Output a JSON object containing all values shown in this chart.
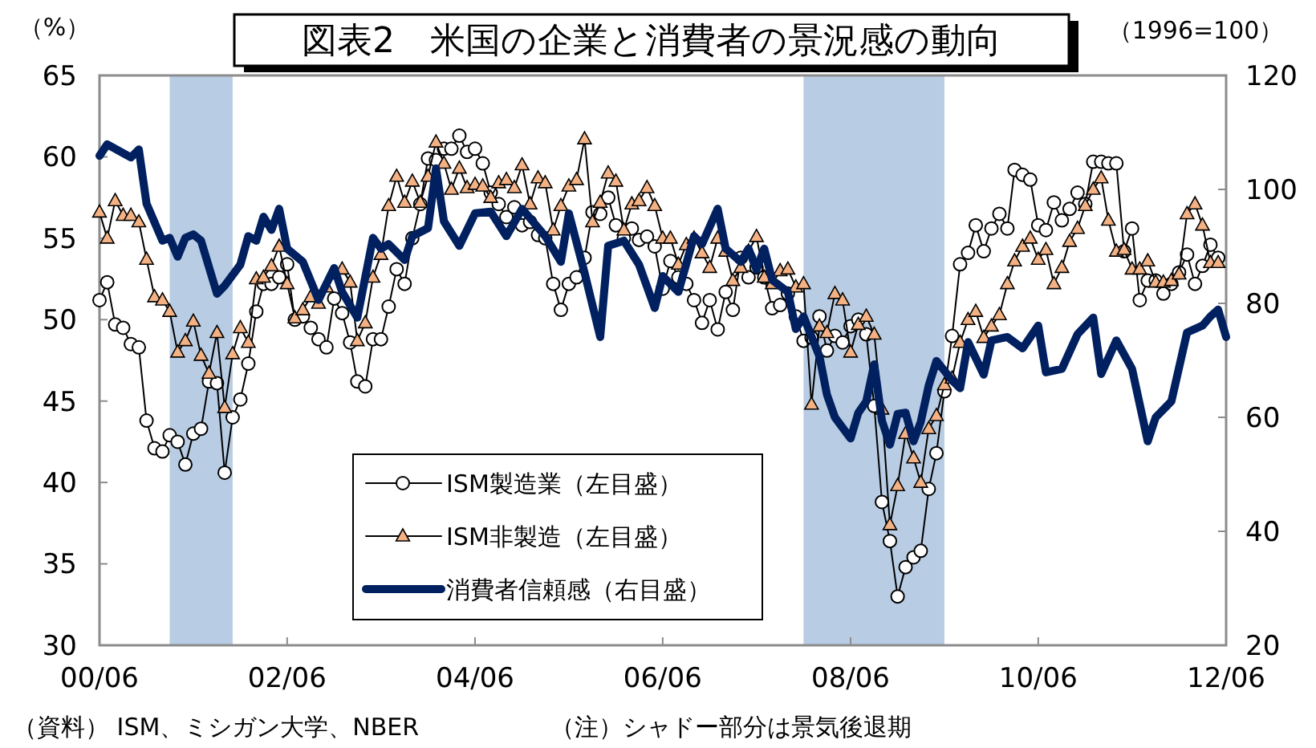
{
  "chart_data": {
    "type": "line",
    "title": "図表2　米国の企業と消費者の景況感の動向",
    "ylabel": "（%）",
    "y2label": "（1996=100）",
    "annotations": [
      "（資料） ISM、ミシガン大学、NBER",
      "（注）シャドー部分は景気後退期"
    ],
    "x": [
      "2000-06",
      "2000-07",
      "2000-08",
      "2000-09",
      "2000-10",
      "2000-11",
      "2000-12",
      "2001-01",
      "2001-02",
      "2001-03",
      "2001-04",
      "2001-05",
      "2001-06",
      "2001-07",
      "2001-08",
      "2001-09",
      "2001-10",
      "2001-11",
      "2001-12",
      "2002-01",
      "2002-02",
      "2002-03",
      "2002-04",
      "2002-05",
      "2002-06",
      "2002-07",
      "2002-08",
      "2002-09",
      "2002-10",
      "2002-11",
      "2002-12",
      "2003-01",
      "2003-02",
      "2003-03",
      "2003-04",
      "2003-05",
      "2003-06",
      "2003-07",
      "2003-08",
      "2003-09",
      "2003-10",
      "2003-11",
      "2003-12",
      "2004-01",
      "2004-02",
      "2004-03",
      "2004-04",
      "2004-05",
      "2004-06",
      "2004-07",
      "2004-08",
      "2004-09",
      "2004-10",
      "2004-11",
      "2004-12",
      "2005-01",
      "2005-02",
      "2005-03",
      "2005-04",
      "2005-05",
      "2005-06",
      "2005-07",
      "2005-08",
      "2005-09",
      "2005-10",
      "2005-11",
      "2005-12",
      "2006-01",
      "2006-02",
      "2006-03",
      "2006-04",
      "2006-05",
      "2006-06",
      "2006-07",
      "2006-08",
      "2006-09",
      "2006-10",
      "2006-11",
      "2006-12",
      "2007-01",
      "2007-02",
      "2007-03",
      "2007-04",
      "2007-05",
      "2007-06",
      "2007-07",
      "2007-08",
      "2007-09",
      "2007-10",
      "2007-11",
      "2007-12",
      "2008-01",
      "2008-02",
      "2008-03",
      "2008-04",
      "2008-05",
      "2008-06",
      "2008-07",
      "2008-08",
      "2008-09",
      "2008-10",
      "2008-11",
      "2008-12",
      "2009-01",
      "2009-02",
      "2009-03",
      "2009-04",
      "2009-05",
      "2009-06",
      "2009-07",
      "2009-08",
      "2009-09",
      "2009-10",
      "2009-11",
      "2009-12",
      "2010-01",
      "2010-02",
      "2010-03",
      "2010-04",
      "2010-05",
      "2010-06",
      "2010-07",
      "2010-08",
      "2010-09",
      "2010-10",
      "2010-11",
      "2010-12",
      "2011-01",
      "2011-02",
      "2011-03",
      "2011-04",
      "2011-05",
      "2011-06",
      "2011-07",
      "2011-08",
      "2011-09",
      "2011-10",
      "2011-11",
      "2011-12",
      "2012-01",
      "2012-02",
      "2012-03",
      "2012-04",
      "2012-05"
    ],
    "xlim": [
      "2000-06",
      "2012-06"
    ],
    "xticks": [
      {
        "value": "2000-06",
        "label": "00/06"
      },
      {
        "value": "2002-06",
        "label": "02/06"
      },
      {
        "value": "2004-06",
        "label": "04/06"
      },
      {
        "value": "2006-06",
        "label": "06/06"
      },
      {
        "value": "2008-06",
        "label": "08/06"
      },
      {
        "value": "2010-06",
        "label": "10/06"
      },
      {
        "value": "2012-06",
        "label": "12/06"
      }
    ],
    "ylim": [
      30,
      65
    ],
    "yticks": [
      30,
      35,
      40,
      45,
      50,
      55,
      60,
      65
    ],
    "y2lim": [
      20,
      120
    ],
    "y2ticks": [
      20,
      40,
      60,
      80,
      100,
      120
    ],
    "legend": "bottom",
    "grid": false,
    "bands": [
      {
        "axis": "x",
        "from": "2001-03",
        "to": "2001-11",
        "color": "#b8cce4"
      },
      {
        "axis": "x",
        "from": "2007-12",
        "to": "2009-06",
        "color": "#b8cce4"
      }
    ],
    "series": [
      {
        "name": "ISM製造業（左目盛）",
        "color": "#000000",
        "marker": "circle",
        "values": [
          51.2,
          52.3,
          49.7,
          49.5,
          48.5,
          48.3,
          43.8,
          42.1,
          41.9,
          42.9,
          42.5,
          41.1,
          43.0,
          43.3,
          46.2,
          46.1,
          40.6,
          44.0,
          45.1,
          47.3,
          50.5,
          52.2,
          52.2,
          52.6,
          53.4,
          50.0,
          50.2,
          49.5,
          48.8,
          48.3,
          51.3,
          50.4,
          48.6,
          46.2,
          45.9,
          48.8,
          48.8,
          50.8,
          53.1,
          52.2,
          55.0,
          57.1,
          59.9,
          59.8,
          60.5,
          60.5,
          61.3,
          60.3,
          60.5,
          59.6,
          57.8,
          57.1,
          56.3,
          56.9,
          55.8,
          56.0,
          55.2,
          55.0,
          52.2,
          50.6,
          52.2,
          52.6,
          53.8,
          56.6,
          56.5,
          57.5,
          55.8,
          55.0,
          55.6,
          54.9,
          55.1,
          54.5,
          51.9,
          53.6,
          52.6,
          52.2,
          51.2,
          49.8,
          51.2,
          49.4,
          51.7,
          50.6,
          53.8,
          52.6,
          53.2,
          52.6,
          50.7,
          50.9,
          51.6,
          50.2,
          48.7,
          48.9,
          50.2,
          48.1,
          49.0,
          48.6,
          49.6,
          50.0,
          49.1,
          44.7,
          38.8,
          36.4,
          33.0,
          34.8,
          35.4,
          35.8,
          39.6,
          41.8,
          45.6,
          49.0,
          53.4,
          54.1,
          55.8,
          54.2,
          55.6,
          56.5,
          55.6,
          59.2,
          58.9,
          58.6,
          55.8,
          55.5,
          57.2,
          56.1,
          56.8,
          57.8,
          57.1,
          59.7,
          59.7,
          59.6,
          59.6,
          54.2,
          55.6,
          51.2,
          52.4,
          52.4,
          51.6,
          52.2,
          52.9,
          54.0,
          52.2,
          53.3,
          54.6,
          53.8
        ]
      },
      {
        "name": "ISM非製造（左目盛）",
        "color": "#f4b183",
        "marker": "triangle",
        "values": [
          56.6,
          55.0,
          57.3,
          56.4,
          56.4,
          56.0,
          53.7,
          51.4,
          51.2,
          50.5,
          48.0,
          48.7,
          49.9,
          47.8,
          46.7,
          49.2,
          44.6,
          47.9,
          49.5,
          48.6,
          52.5,
          52.6,
          53.3,
          54.5,
          52.2,
          50.1,
          50.6,
          51.4,
          51.0,
          52.0,
          52.8,
          53.1,
          52.3,
          48.7,
          49.8,
          52.6,
          54.0,
          57.0,
          58.8,
          57.2,
          58.5,
          57.2,
          58.8,
          60.9,
          59.6,
          58.0,
          59.3,
          58.1,
          58.3,
          58.2,
          57.5,
          58.4,
          58.6,
          58.1,
          59.5,
          57.1,
          58.7,
          58.4,
          55.5,
          57.0,
          58.2,
          58.6,
          61.1,
          56.0,
          57.2,
          59.0,
          58.5,
          55.5,
          57.1,
          57.3,
          58.1,
          57.0,
          55.0,
          55.0,
          53.4,
          54.6,
          55.0,
          54.1,
          53.2,
          55.0,
          54.2,
          52.4,
          53.2,
          54.2,
          55.1,
          52.6,
          52.2,
          53.0,
          53.1,
          52.0,
          52.2,
          44.8,
          49.6,
          49.2,
          51.6,
          51.2,
          48.0,
          49.7,
          50.2,
          49.1,
          44.5,
          37.4,
          39.8,
          43.0,
          41.5,
          40.0,
          43.3,
          44.1,
          46.0,
          46.4,
          48.6,
          50.0,
          50.5,
          48.9,
          49.6,
          50.3,
          52.2,
          53.6,
          54.5,
          55.0,
          53.7,
          54.3,
          52.2,
          53.2,
          54.8,
          55.6,
          57.0,
          58.0,
          58.7,
          56.1,
          54.2,
          54.3,
          53.1,
          53.1,
          53.6,
          52.3,
          52.3,
          52.4,
          52.8,
          56.5,
          57.1,
          55.8,
          53.5,
          53.5
        ]
      },
      {
        "name": "消費者信頼感（右目盛）",
        "color": "#002060",
        "marker": "none",
        "axis": "y2",
        "x": [
          "2000-06",
          "2000-07",
          "2000-10",
          "2000-11",
          "2000-12",
          "2001-02",
          "2001-03",
          "2001-04",
          "2001-05",
          "2001-06",
          "2001-07",
          "2001-09",
          "2001-10",
          "2001-12",
          "2002-01",
          "2002-02",
          "2002-03",
          "2002-04",
          "2002-05",
          "2002-06",
          "2002-08",
          "2002-10",
          "2002-12",
          "2003-01",
          "2003-03",
          "2003-05",
          "2003-06",
          "2003-07",
          "2003-09",
          "2003-10",
          "2003-12",
          "2004-01",
          "2004-02",
          "2004-04",
          "2004-06",
          "2004-08",
          "2004-10",
          "2004-12",
          "2005-03",
          "2005-05",
          "2005-06",
          "2005-08",
          "2005-10",
          "2005-11",
          "2006-01",
          "2006-03",
          "2006-05",
          "2006-06",
          "2006-08",
          "2006-10",
          "2006-11",
          "2007-01",
          "2007-02",
          "2007-04",
          "2007-05",
          "2007-06",
          "2007-07",
          "2007-08",
          "2007-10",
          "2007-11",
          "2007-12",
          "2008-02",
          "2008-03",
          "2008-04",
          "2008-06",
          "2008-07",
          "2008-08",
          "2008-09",
          "2008-10",
          "2008-11",
          "2008-12",
          "2009-01",
          "2009-02",
          "2009-03",
          "2009-04",
          "2009-05",
          "2009-07",
          "2009-08",
          "2009-09",
          "2009-11",
          "2009-12",
          "2010-02",
          "2010-04",
          "2010-06",
          "2010-07",
          "2010-09",
          "2010-11",
          "2011-01",
          "2011-02",
          "2011-04",
          "2011-06",
          "2011-08",
          "2011-09",
          "2011-11",
          "2012-01",
          "2012-03",
          "2012-04",
          "2012-05",
          "2012-06"
        ],
        "values": [
          105.9,
          107.9,
          105.6,
          107.0,
          97.5,
          91.0,
          91.5,
          88.2,
          91.5,
          92.1,
          91.0,
          81.7,
          83.1,
          86.8,
          91.8,
          91.0,
          95.2,
          92.9,
          96.6,
          89.6,
          87.3,
          80.6,
          86.2,
          82.0,
          77.5,
          91.5,
          89.6,
          90.4,
          87.6,
          91.8,
          93.2,
          103.7,
          94.4,
          90.1,
          95.8,
          96.1,
          91.8,
          96.6,
          91.8,
          87.3,
          95.8,
          85.4,
          74.1,
          90.1,
          91.0,
          86.8,
          79.2,
          84.8,
          82.0,
          91.8,
          90.4,
          96.6,
          89.6,
          87.3,
          89.6,
          85.9,
          89.6,
          84.1,
          82.0,
          75.5,
          77.7,
          70.7,
          64.0,
          60.0,
          56.3,
          60.8,
          62.8,
          69.3,
          59.4,
          55.2,
          60.6,
          60.8,
          55.8,
          59.2,
          65.6,
          69.9,
          66.5,
          65.1,
          73.2,
          67.5,
          73.5,
          74.1,
          72.1,
          76.1,
          67.9,
          68.5,
          74.6,
          77.5,
          67.6,
          73.5,
          68.5,
          55.8,
          60.0,
          62.8,
          74.9,
          76.1,
          77.7,
          78.9,
          74.1
        ]
      }
    ]
  }
}
